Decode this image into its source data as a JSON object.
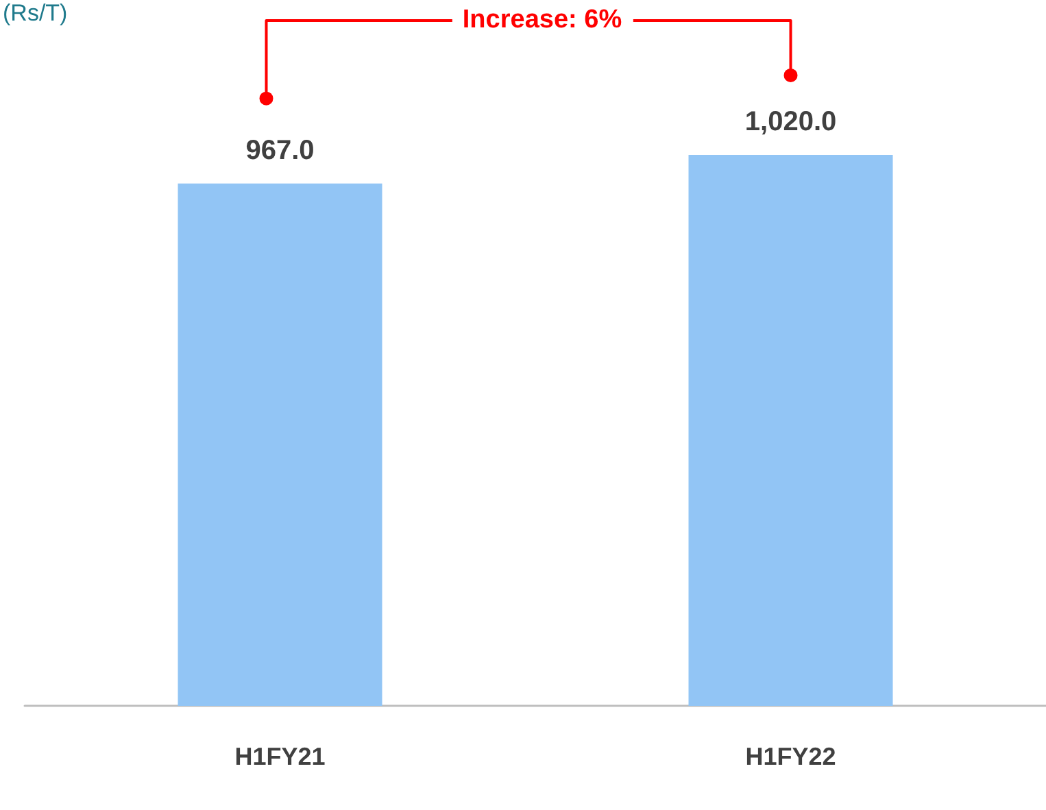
{
  "chart_data": {
    "type": "bar",
    "title": "(Rs/T)",
    "categories": [
      "H1FY21",
      "H1FY22"
    ],
    "values": [
      967.0,
      1020.0
    ],
    "value_labels": [
      "967.0",
      "1,020.0"
    ],
    "color": "#92c5f5",
    "tick_labels": "x",
    "annotations": [
      "Increase: 6%"
    ]
  }
}
